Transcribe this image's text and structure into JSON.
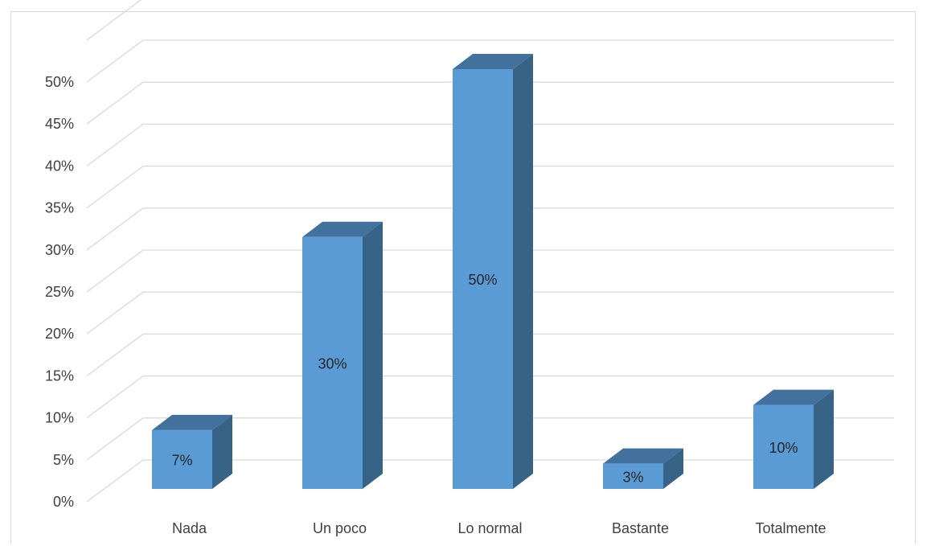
{
  "chart_data": {
    "type": "bar",
    "categories": [
      "Nada",
      "Un poco",
      "Lo normal",
      "Bastante",
      "Totalmente"
    ],
    "values": [
      7,
      30,
      50,
      3,
      10
    ],
    "data_labels": [
      "7%",
      "30%",
      "50%",
      "3%",
      "10%"
    ],
    "y_tick_labels": [
      "0%",
      "5%",
      "10%",
      "15%",
      "20%",
      "25%",
      "30%",
      "35%",
      "40%",
      "45%",
      "50%"
    ],
    "ylim": [
      0,
      50
    ],
    "y_unit": "%",
    "grid": true,
    "legend": "none",
    "style": "3d-column",
    "colors": {
      "bar_front": "#5b9bd5",
      "bar_top": "#41719c",
      "bar_side": "#376387",
      "grid": "#d9d9d9",
      "text": "#404040"
    }
  }
}
